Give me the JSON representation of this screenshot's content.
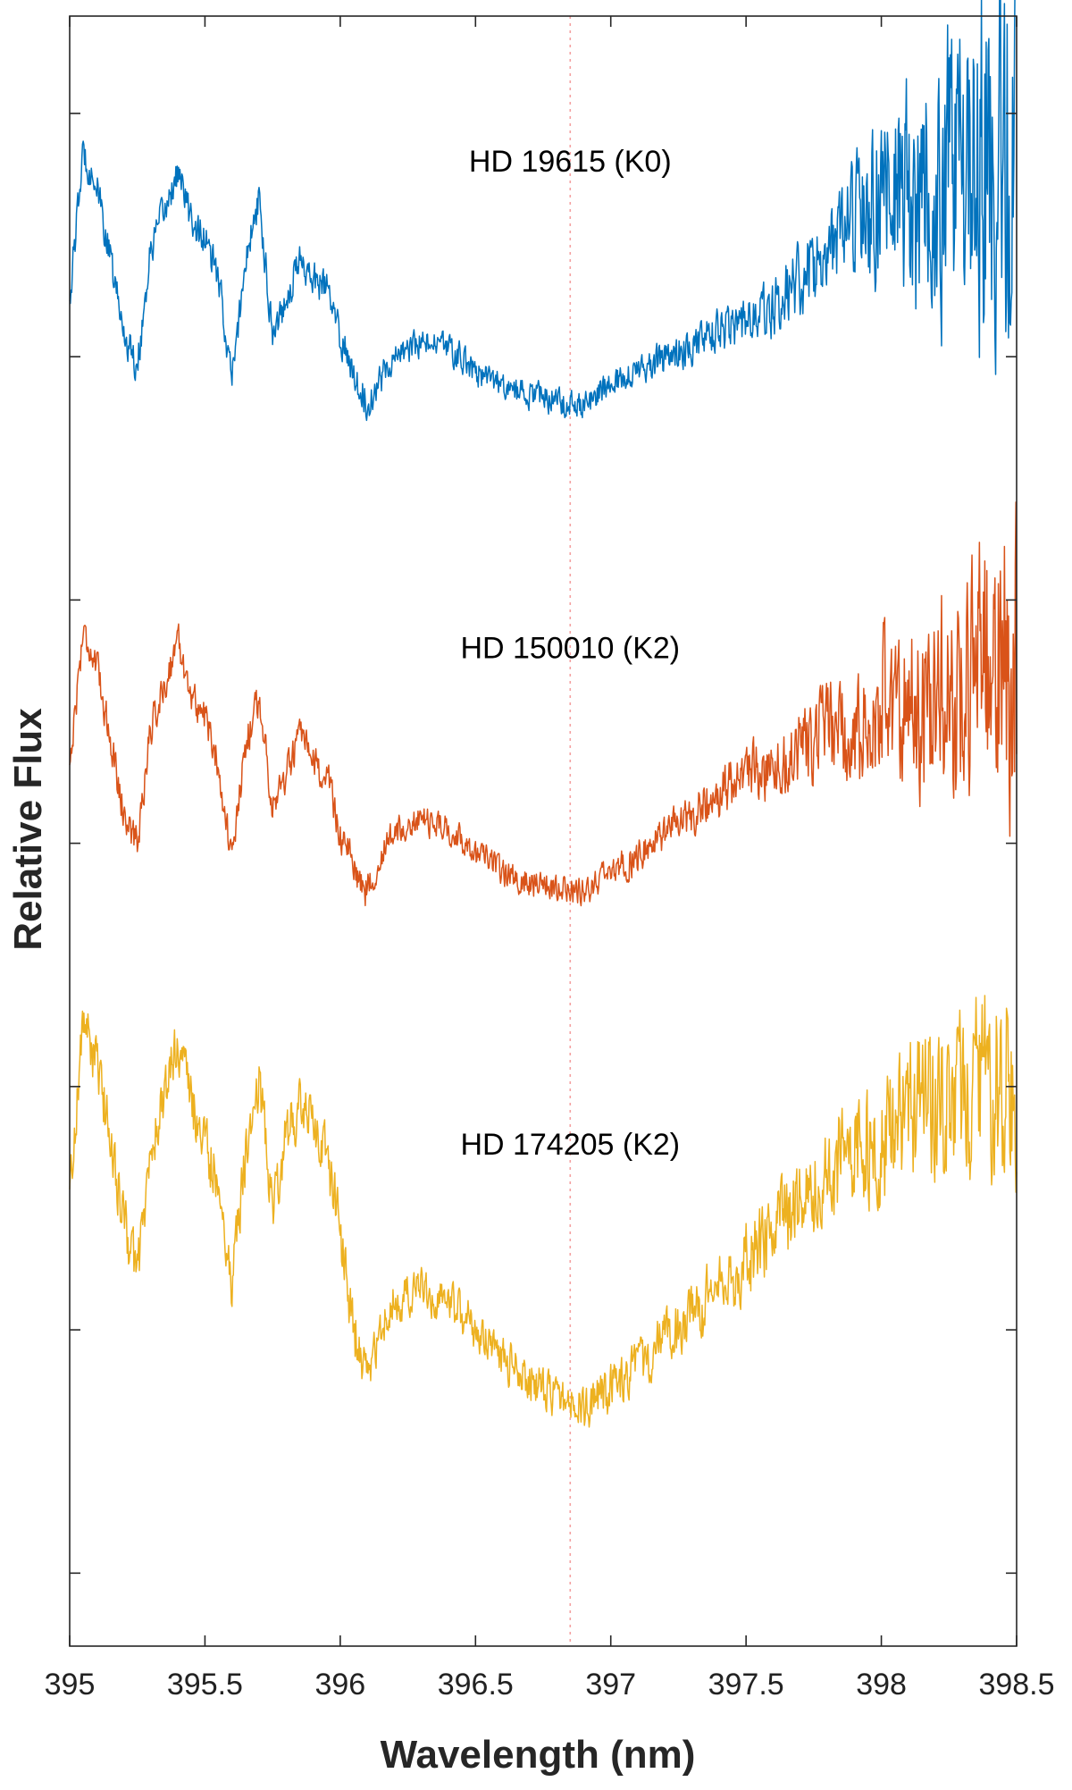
{
  "chart_data": {
    "type": "line",
    "xlabel": "Wavelength (nm)",
    "ylabel": "Relative Flux",
    "xlim": [
      395,
      398.5
    ],
    "x_ticks": [
      "395",
      "395.5",
      "396",
      "396.5",
      "397",
      "397.5",
      "398",
      "398.5"
    ],
    "y_ticks_labeled": false,
    "reference_line_x": 396.85,
    "reference_line_color": "#f4a0a0",
    "series": [
      {
        "label": "HD 19615 (K0)",
        "color": "#0072bd",
        "baseline_offset": 2,
        "x": [
          395.0,
          395.05,
          395.1,
          395.15,
          395.2,
          395.25,
          395.3,
          395.35,
          395.4,
          395.45,
          395.5,
          395.55,
          395.6,
          395.65,
          395.7,
          395.75,
          395.8,
          395.85,
          395.9,
          395.95,
          396.0,
          396.05,
          396.1,
          396.15,
          396.2,
          396.3,
          396.4,
          396.5,
          396.6,
          396.7,
          396.8,
          396.9,
          397.0,
          397.1,
          397.2,
          397.3,
          397.4,
          397.5,
          397.6,
          397.7,
          397.8,
          397.9,
          398.0,
          398.1,
          398.2,
          398.3,
          398.4,
          398.5
        ],
        "y": [
          0.62,
          0.92,
          0.85,
          0.7,
          0.55,
          0.48,
          0.72,
          0.8,
          0.88,
          0.78,
          0.74,
          0.66,
          0.45,
          0.7,
          0.82,
          0.55,
          0.62,
          0.7,
          0.66,
          0.64,
          0.54,
          0.47,
          0.4,
          0.46,
          0.5,
          0.53,
          0.52,
          0.47,
          0.44,
          0.42,
          0.41,
          0.4,
          0.45,
          0.47,
          0.5,
          0.52,
          0.55,
          0.58,
          0.6,
          0.66,
          0.7,
          0.76,
          0.86,
          0.8,
          0.84,
          0.88,
          0.92,
          0.96
        ],
        "noise_amplitude": [
          0.05,
          0.05,
          0.05,
          0.05,
          0.05,
          0.05,
          0.05,
          0.05,
          0.05,
          0.05,
          0.05,
          0.05,
          0.05,
          0.05,
          0.05,
          0.05,
          0.05,
          0.05,
          0.05,
          0.05,
          0.05,
          0.05,
          0.05,
          0.05,
          0.04,
          0.04,
          0.04,
          0.04,
          0.04,
          0.04,
          0.04,
          0.04,
          0.04,
          0.04,
          0.05,
          0.05,
          0.06,
          0.07,
          0.08,
          0.1,
          0.13,
          0.18,
          0.26,
          0.33,
          0.4,
          0.46,
          0.52,
          0.56
        ]
      },
      {
        "label": "HD 150010 (K2)",
        "color": "#d95319",
        "baseline_offset": 1,
        "x": [
          395.0,
          395.05,
          395.1,
          395.15,
          395.2,
          395.25,
          395.3,
          395.35,
          395.4,
          395.45,
          395.5,
          395.55,
          395.6,
          395.65,
          395.7,
          395.75,
          395.8,
          395.85,
          395.9,
          395.95,
          396.0,
          396.05,
          396.1,
          396.15,
          396.2,
          396.3,
          396.4,
          396.5,
          396.6,
          396.7,
          396.8,
          396.9,
          397.0,
          397.1,
          397.2,
          397.3,
          397.4,
          397.5,
          397.6,
          397.7,
          397.8,
          397.9,
          398.0,
          398.1,
          398.2,
          398.3,
          398.4,
          398.5
        ],
        "y": [
          0.66,
          0.94,
          0.86,
          0.72,
          0.56,
          0.5,
          0.74,
          0.82,
          0.92,
          0.8,
          0.76,
          0.66,
          0.46,
          0.7,
          0.8,
          0.58,
          0.64,
          0.72,
          0.66,
          0.64,
          0.52,
          0.45,
          0.4,
          0.48,
          0.52,
          0.55,
          0.53,
          0.48,
          0.44,
          0.42,
          0.41,
          0.4,
          0.44,
          0.47,
          0.52,
          0.56,
          0.6,
          0.64,
          0.66,
          0.7,
          0.74,
          0.72,
          0.8,
          0.76,
          0.8,
          0.84,
          0.86,
          0.86
        ],
        "noise_amplitude": [
          0.05,
          0.05,
          0.05,
          0.05,
          0.05,
          0.05,
          0.05,
          0.05,
          0.05,
          0.05,
          0.05,
          0.05,
          0.05,
          0.05,
          0.05,
          0.05,
          0.05,
          0.05,
          0.05,
          0.05,
          0.05,
          0.05,
          0.05,
          0.05,
          0.04,
          0.04,
          0.04,
          0.04,
          0.04,
          0.04,
          0.04,
          0.04,
          0.04,
          0.05,
          0.05,
          0.06,
          0.07,
          0.08,
          0.09,
          0.11,
          0.13,
          0.16,
          0.2,
          0.24,
          0.28,
          0.34,
          0.4,
          0.46
        ]
      },
      {
        "label": "HD 174205 (K2)",
        "color": "#edb120",
        "baseline_offset": 0,
        "x": [
          395.0,
          395.05,
          395.1,
          395.15,
          395.2,
          395.25,
          395.3,
          395.35,
          395.4,
          395.45,
          395.5,
          395.55,
          395.6,
          395.65,
          395.7,
          395.75,
          395.8,
          395.85,
          395.9,
          395.95,
          396.0,
          396.05,
          396.1,
          396.15,
          396.2,
          396.3,
          396.4,
          396.5,
          396.6,
          396.7,
          396.8,
          396.9,
          397.0,
          397.1,
          397.2,
          397.3,
          397.4,
          397.5,
          397.6,
          397.7,
          397.8,
          397.9,
          398.0,
          398.1,
          398.2,
          398.3,
          398.4,
          398.5
        ],
        "y": [
          0.78,
          1.14,
          1.04,
          0.9,
          0.72,
          0.62,
          0.86,
          0.98,
          1.1,
          0.96,
          0.88,
          0.8,
          0.6,
          0.86,
          1.02,
          0.76,
          0.9,
          0.96,
          0.92,
          0.86,
          0.7,
          0.5,
          0.4,
          0.5,
          0.56,
          0.58,
          0.56,
          0.5,
          0.44,
          0.4,
          0.36,
          0.34,
          0.38,
          0.42,
          0.48,
          0.52,
          0.58,
          0.64,
          0.7,
          0.76,
          0.82,
          0.86,
          0.9,
          0.94,
          0.98,
          1.0,
          1.02,
          1.02
        ],
        "noise_amplitude": [
          0.08,
          0.08,
          0.08,
          0.08,
          0.08,
          0.08,
          0.08,
          0.08,
          0.08,
          0.08,
          0.08,
          0.08,
          0.08,
          0.08,
          0.08,
          0.08,
          0.08,
          0.08,
          0.08,
          0.08,
          0.08,
          0.08,
          0.07,
          0.06,
          0.06,
          0.06,
          0.06,
          0.06,
          0.06,
          0.06,
          0.06,
          0.06,
          0.07,
          0.07,
          0.08,
          0.09,
          0.1,
          0.11,
          0.12,
          0.13,
          0.14,
          0.16,
          0.18,
          0.2,
          0.22,
          0.24,
          0.26,
          0.28
        ]
      }
    ]
  }
}
